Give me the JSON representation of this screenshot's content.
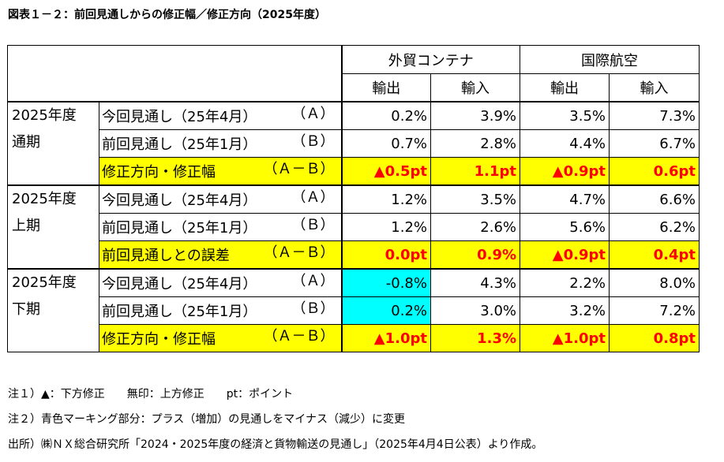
{
  "title": "図表１－２：前回見通しからの修正幅／修正方向（2025年度）",
  "header": {
    "col_groups": [
      "外貿コンテナ",
      "国際航空"
    ],
    "sub_cols": [
      "輸出",
      "輸入",
      "輸出",
      "輸入"
    ]
  },
  "groups": [
    {
      "period_line1": "2025年度",
      "period_line2": "通期",
      "rows": [
        {
          "label": "今回見通し（25年4月）",
          "code": "（Ａ）",
          "values": [
            "0.2%",
            "3.9%",
            "3.5%",
            "7.3%"
          ],
          "highlight": false
        },
        {
          "label": "前回見通し（25年1月）",
          "code": "（Ｂ）",
          "values": [
            "0.7%",
            "2.8%",
            "4.4%",
            "6.7%"
          ],
          "highlight": false
        },
        {
          "label": "修正方向・修正幅",
          "code": "（Ａ－Ｂ）",
          "values": [
            "▲0.5pt",
            "1.1pt",
            "▲0.9pt",
            "0.6pt"
          ],
          "highlight": true
        }
      ]
    },
    {
      "period_line1": "2025年度",
      "period_line2": "上期",
      "rows": [
        {
          "label": "今回見通し（25年4月）",
          "code": "（Ａ）",
          "values": [
            "1.2%",
            "3.5%",
            "4.7%",
            "6.6%"
          ],
          "highlight": false
        },
        {
          "label": "前回見通し（25年1月）",
          "code": "（Ｂ）",
          "values": [
            "1.2%",
            "2.6%",
            "5.6%",
            "6.2%"
          ],
          "highlight": false
        },
        {
          "label": "前回見通しとの誤差",
          "code": "（Ａ－Ｂ）",
          "values": [
            "0.0pt",
            "0.9%",
            "▲0.9pt",
            "0.4pt"
          ],
          "highlight": true
        }
      ]
    },
    {
      "period_line1": "2025年度",
      "period_line2": "下期",
      "rows": [
        {
          "label": "今回見通し（25年4月）",
          "code": "（Ａ）",
          "values": [
            "-0.8%",
            "4.3%",
            "2.2%",
            "8.0%"
          ],
          "highlight": false,
          "cyan_col": 0
        },
        {
          "label": "前回見通し（25年1月）",
          "code": "（Ｂ）",
          "values": [
            "0.2%",
            "3.0%",
            "3.2%",
            "7.2%"
          ],
          "highlight": false,
          "cyan_col": 0
        },
        {
          "label": "修正方向・修正幅",
          "code": "（Ａ－Ｂ）",
          "values": [
            "▲1.0pt",
            "1.3%",
            "▲1.0pt",
            "0.8pt"
          ],
          "highlight": true
        }
      ]
    }
  ],
  "colors": {
    "highlight_yellow": "#ffff00",
    "highlight_cyan": "#00ffff",
    "negative_red": "#ff0000"
  },
  "notes": [
    "注１）▲：下方修正　　無印：上方修正　　pt：ポイント",
    "注２）青色マーキング部分：プラス（増加）の見通しをマイナス（減少）に変更",
    "出所）㈱ＮＸ総合研究所「2024・2025年度の経済と貨物輸送の見通し」（2025年4月4日公表）より作成。"
  ]
}
